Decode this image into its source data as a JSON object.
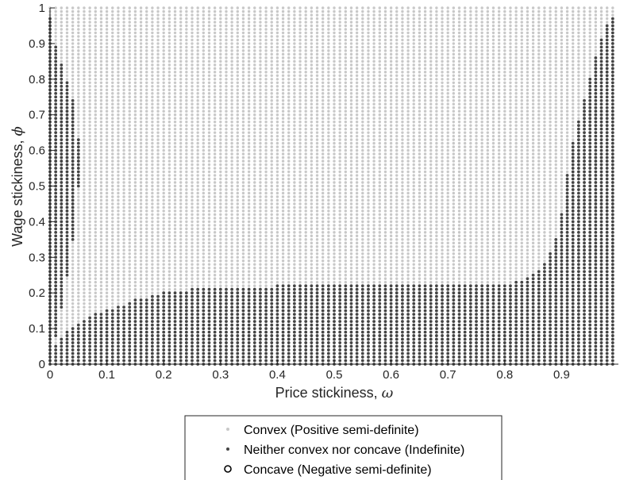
{
  "chart_data": {
    "type": "scatter",
    "title": "",
    "xlabel": "Price stickiness, ",
    "xlabel_symbol": "ω",
    "ylabel": "Wage stickiness, ",
    "ylabel_symbol": "ϕ",
    "xlim": [
      0,
      0.99
    ],
    "ylim": [
      0,
      1
    ],
    "xticks": [
      0,
      0.1,
      0.2,
      0.3,
      0.4,
      0.5,
      0.6,
      0.7,
      0.8,
      0.9
    ],
    "xtick_labels": [
      "0",
      "0.1",
      "0.2",
      "0.3",
      "0.4",
      "0.5",
      "0.6",
      "0.7",
      "0.8",
      "0.9"
    ],
    "yticks": [
      0,
      0.1,
      0.2,
      0.3,
      0.4,
      0.5,
      0.6,
      0.7,
      0.8,
      0.9,
      1
    ],
    "ytick_labels": [
      "0",
      "0.1",
      "0.2",
      "0.3",
      "0.4",
      "0.5",
      "0.6",
      "0.7",
      "0.8",
      "0.9",
      "1"
    ],
    "grid": false,
    "grid_step": 0.01,
    "legend_position": "bottom-center",
    "series": [
      {
        "name": "Convex (Positive semi-definite)",
        "marker": "dot",
        "color": "#c8c8c8"
      },
      {
        "name": "Neither convex nor concave (Indefinite)",
        "marker": "dot",
        "color": "#444444"
      },
      {
        "name": "Concave (Negative semi-definite)",
        "marker": "circle",
        "color": "#000000"
      }
    ],
    "indefinite_lower_region_upper_boundary": {
      "x": [
        0.0,
        0.01,
        0.02,
        0.03,
        0.04,
        0.05,
        0.06,
        0.08,
        0.1,
        0.12,
        0.15,
        0.2,
        0.25,
        0.3,
        0.4,
        0.45,
        0.6,
        0.8,
        0.84,
        0.86,
        0.87,
        0.88,
        0.89,
        0.9,
        0.91,
        0.92,
        0.93,
        0.94,
        0.95,
        0.96,
        0.97,
        0.98,
        0.99
      ],
      "phi": [
        0.03,
        0.05,
        0.07,
        0.09,
        0.1,
        0.11,
        0.12,
        0.14,
        0.15,
        0.16,
        0.18,
        0.2,
        0.21,
        0.21,
        0.22,
        0.22,
        0.22,
        0.22,
        0.24,
        0.26,
        0.28,
        0.31,
        0.35,
        0.42,
        0.53,
        0.62,
        0.68,
        0.74,
        0.8,
        0.86,
        0.91,
        0.95,
        0.97
      ]
    },
    "indefinite_upper_left_region": {
      "x": [
        0.0,
        0.01,
        0.02,
        0.03,
        0.04,
        0.05
      ],
      "phi_low": [
        0.03,
        0.08,
        0.16,
        0.25,
        0.35,
        0.5
      ],
      "phi_high": [
        0.97,
        0.89,
        0.84,
        0.79,
        0.74,
        0.63
      ]
    }
  },
  "legend": {
    "items": [
      "Convex (Positive semi-definite)",
      "Neither convex nor concave (Indefinite)",
      "Concave (Negative semi-definite)"
    ]
  }
}
